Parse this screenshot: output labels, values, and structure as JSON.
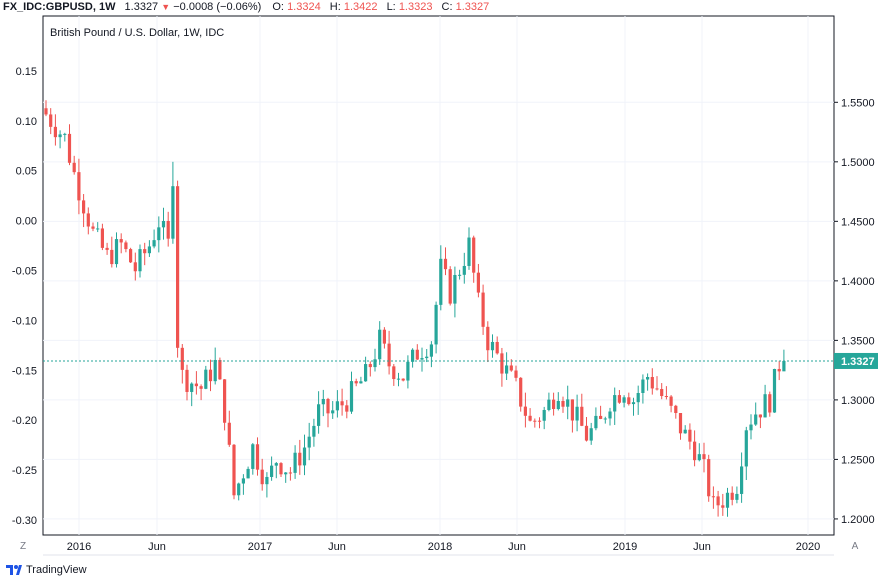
{
  "header": {
    "symbol": "FX_IDC:GBPUSD, 1W",
    "last": "1.3327",
    "change": "−0.0008 (−0.06%)",
    "open_label": "O:",
    "open": "1.3324",
    "high_label": "H:",
    "high": "1.3422",
    "low_label": "L:",
    "low": "1.3323",
    "close_label": "C:",
    "close": "1.3327"
  },
  "branding": {
    "name": "TradingView"
  },
  "axis_buttons": {
    "left": "Z",
    "right": "A"
  },
  "colors": {
    "up": "#26a69a",
    "down": "#ef5350",
    "line": "#26a69a",
    "label_bg": "#26a69a",
    "axis": "#131722"
  },
  "chart_data": {
    "type": "candlestick",
    "title": "British Pound / U.S. Dollar, 1W, IDC",
    "left_axis": {
      "ticks": [
        "0.15",
        "0.10",
        "0.05",
        "0.00",
        "-0.05",
        "-0.10",
        "-0.15",
        "-0.20",
        "-0.25",
        "-0.30"
      ],
      "range": [
        -0.315,
        0.205
      ]
    },
    "right_axis": {
      "ticks": [
        "1.5500",
        "1.5000",
        "1.4500",
        "1.4000",
        "1.3500",
        "1.3000",
        "1.2500",
        "1.2000"
      ],
      "range": [
        1.1865,
        1.6225
      ]
    },
    "x_ticks": [
      "2016",
      "Jun",
      "2017",
      "Jun",
      "2018",
      "Jun",
      "2019",
      "Jun",
      "2020"
    ],
    "current_price": 1.3327,
    "current_price_label": "1.3327",
    "key_points": [
      {
        "t": 0,
        "v": 1.54
      },
      {
        "t": 4,
        "v": 1.52
      },
      {
        "t": 6,
        "v": 1.49
      },
      {
        "t": 10,
        "v": 1.44
      },
      {
        "t": 13,
        "v": 1.42
      },
      {
        "t": 16,
        "v": 1.43
      },
      {
        "t": 19,
        "v": 1.41
      },
      {
        "t": 22,
        "v": 1.43
      },
      {
        "t": 24,
        "v": 1.45
      },
      {
        "t": 26,
        "v": 1.43
      },
      {
        "t": 27,
        "v": 1.49
      },
      {
        "t": 28,
        "v": 1.35
      },
      {
        "t": 29,
        "v": 1.32
      },
      {
        "t": 33,
        "v": 1.31
      },
      {
        "t": 36,
        "v": 1.33
      },
      {
        "t": 38,
        "v": 1.29
      },
      {
        "t": 40,
        "v": 1.22
      },
      {
        "t": 42,
        "v": 1.24
      },
      {
        "t": 44,
        "v": 1.26
      },
      {
        "t": 47,
        "v": 1.23
      },
      {
        "t": 49,
        "v": 1.25
      },
      {
        "t": 52,
        "v": 1.24
      },
      {
        "t": 55,
        "v": 1.26
      },
      {
        "t": 58,
        "v": 1.29
      },
      {
        "t": 61,
        "v": 1.29
      },
      {
        "t": 64,
        "v": 1.3
      },
      {
        "t": 68,
        "v": 1.32
      },
      {
        "t": 71,
        "v": 1.35
      },
      {
        "t": 73,
        "v": 1.33
      },
      {
        "t": 76,
        "v": 1.32
      },
      {
        "t": 79,
        "v": 1.34
      },
      {
        "t": 82,
        "v": 1.35
      },
      {
        "t": 84,
        "v": 1.41
      },
      {
        "t": 86,
        "v": 1.39
      },
      {
        "t": 88,
        "v": 1.41
      },
      {
        "t": 90,
        "v": 1.43
      },
      {
        "t": 92,
        "v": 1.38
      },
      {
        "t": 94,
        "v": 1.35
      },
      {
        "t": 97,
        "v": 1.33
      },
      {
        "t": 100,
        "v": 1.31
      },
      {
        "t": 103,
        "v": 1.28
      },
      {
        "t": 106,
        "v": 1.29
      },
      {
        "t": 109,
        "v": 1.31
      },
      {
        "t": 112,
        "v": 1.29
      },
      {
        "t": 115,
        "v": 1.27
      },
      {
        "t": 118,
        "v": 1.28
      },
      {
        "t": 120,
        "v": 1.3
      },
      {
        "t": 123,
        "v": 1.31
      },
      {
        "t": 125,
        "v": 1.3
      },
      {
        "t": 128,
        "v": 1.32
      },
      {
        "t": 130,
        "v": 1.31
      },
      {
        "t": 133,
        "v": 1.29
      },
      {
        "t": 136,
        "v": 1.27
      },
      {
        "t": 138,
        "v": 1.26
      },
      {
        "t": 140,
        "v": 1.24
      },
      {
        "t": 142,
        "v": 1.21
      },
      {
        "t": 145,
        "v": 1.22
      },
      {
        "t": 147,
        "v": 1.23
      },
      {
        "t": 149,
        "v": 1.28
      },
      {
        "t": 151,
        "v": 1.29
      },
      {
        "t": 154,
        "v": 1.3
      },
      {
        "t": 156,
        "v": 1.33
      },
      {
        "t": 157,
        "v": 1.3327
      }
    ]
  }
}
